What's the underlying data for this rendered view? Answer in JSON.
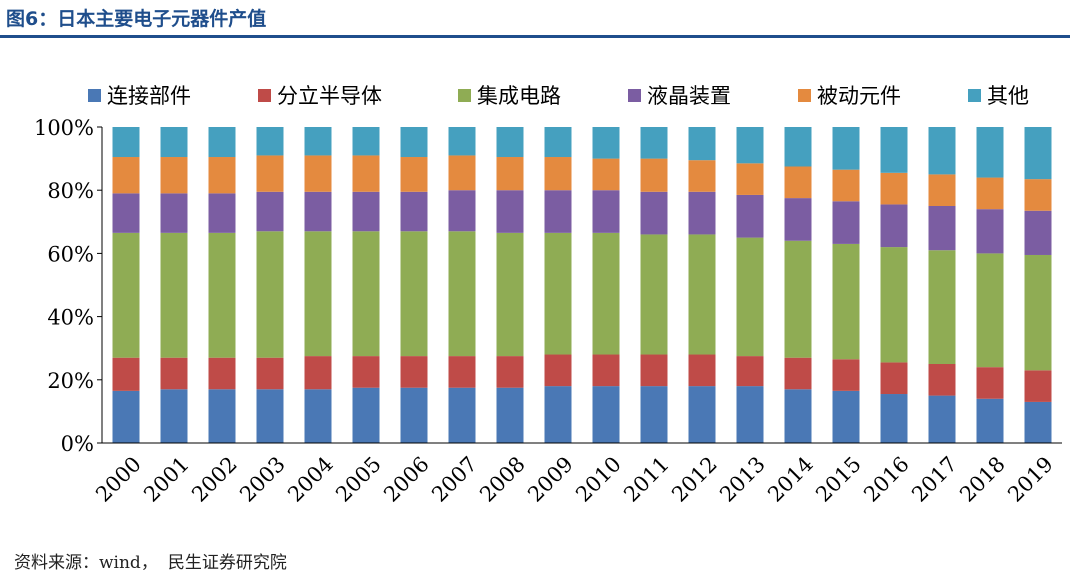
{
  "figure": {
    "title": "图6：日本主要电子元器件产值",
    "source_label": "资料来源：wind，",
    "source_org": "民生证券研究院"
  },
  "chart_data": {
    "type": "bar",
    "stacked": true,
    "percent": true,
    "title": "",
    "xlabel": "",
    "ylabel": "",
    "ylim": [
      0,
      100
    ],
    "yticks": [
      "0%",
      "20%",
      "40%",
      "60%",
      "80%",
      "100%"
    ],
    "grid": false,
    "legend_position": "top",
    "categories": [
      "2000",
      "2001",
      "2002",
      "2003",
      "2004",
      "2005",
      "2006",
      "2007",
      "2008",
      "2009",
      "2010",
      "2011",
      "2012",
      "2013",
      "2014",
      "2015",
      "2016",
      "2017",
      "2018",
      "2019"
    ],
    "series": [
      {
        "name": "连接部件",
        "color": "#4a78b5",
        "values": [
          16.5,
          17,
          17,
          17,
          17,
          17.5,
          17.5,
          17.5,
          17.5,
          18,
          18,
          18,
          18,
          18,
          17,
          16.5,
          15.5,
          15,
          14,
          13
        ]
      },
      {
        "name": "分立半导体",
        "color": "#bf4b48",
        "values": [
          10.5,
          10,
          10,
          10,
          10.5,
          10,
          10,
          10,
          10,
          10,
          10,
          10,
          10,
          9.5,
          10,
          10,
          10,
          10,
          10,
          10
        ]
      },
      {
        "name": "集成电路",
        "color": "#8fac54",
        "values": [
          39.5,
          39.5,
          39.5,
          40,
          39.5,
          39.5,
          39.5,
          39.5,
          39,
          38.5,
          38.5,
          38,
          38,
          37.5,
          37,
          36.5,
          36.5,
          36,
          36,
          36.5
        ]
      },
      {
        "name": "液晶装置",
        "color": "#7b5da2",
        "values": [
          12.5,
          12.5,
          12.5,
          12.5,
          12.5,
          12.5,
          12.5,
          13,
          13.5,
          13.5,
          13.5,
          13.5,
          13.5,
          13.5,
          13.5,
          13.5,
          13.5,
          14,
          14,
          14
        ]
      },
      {
        "name": "被动元件",
        "color": "#e48a3f",
        "values": [
          11.5,
          11.5,
          11.5,
          11.5,
          11.5,
          11.5,
          11,
          11,
          10.5,
          10.5,
          10,
          10.5,
          10,
          10,
          10,
          10,
          10,
          10,
          10,
          10
        ]
      },
      {
        "name": "其他",
        "color": "#45a0bf",
        "values": [
          9.5,
          9.5,
          9.5,
          9,
          9,
          9,
          9.5,
          9,
          9.5,
          9.5,
          10,
          10,
          10.5,
          11.5,
          12.5,
          13.5,
          14.5,
          15,
          16,
          16.5
        ]
      }
    ]
  }
}
